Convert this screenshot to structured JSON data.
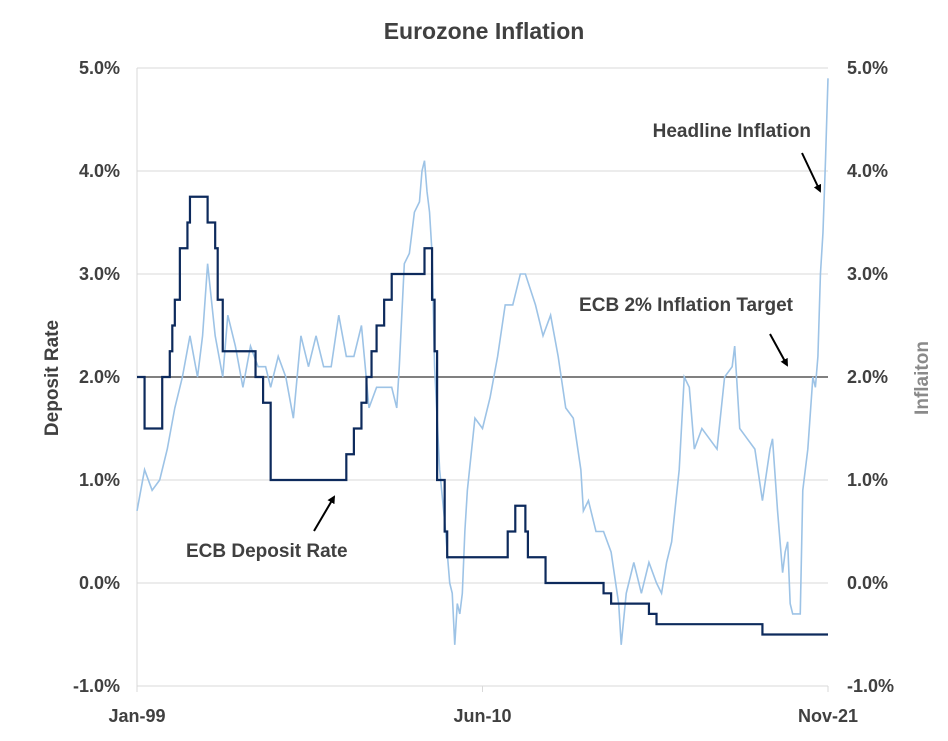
{
  "chart_data": {
    "type": "line",
    "title": "Eurozone Inflation",
    "ylabel": "Deposit  Rate",
    "y2label": "Inflaiton",
    "ylim": [
      -1.0,
      5.0
    ],
    "y2lim": [
      -1.0,
      5.0
    ],
    "yticks": [
      "-1.0%",
      "0.0%",
      "1.0%",
      "2.0%",
      "3.0%",
      "4.0%",
      "5.0%"
    ],
    "y2ticks": [
      "-1.0%",
      "0.0%",
      "1.0%",
      "2.0%",
      "3.0%",
      "4.0%",
      "5.0%"
    ],
    "xticks": [
      "Jan-99",
      "Jun-10",
      "Nov-21"
    ],
    "xrange": [
      "Jan-99",
      "Nov-21"
    ],
    "grid": "horizontal",
    "colors": {
      "deposit": "#0d2a5c",
      "inflation": "#9dc3e6",
      "target": "#000000"
    },
    "annotations": {
      "headline": "Headline Inflation",
      "target": "ECB 2% Inflation Target",
      "deposit": "ECB Deposit Rate"
    },
    "series": [
      {
        "name": "ECB Deposit Rate",
        "axis": "left",
        "points": [
          [
            "1999-01",
            2.0
          ],
          [
            "1999-04",
            1.5
          ],
          [
            "1999-11",
            2.0
          ],
          [
            "2000-02",
            2.25
          ],
          [
            "2000-03",
            2.5
          ],
          [
            "2000-04",
            2.75
          ],
          [
            "2000-06",
            3.25
          ],
          [
            "2000-09",
            3.5
          ],
          [
            "2000-10",
            3.75
          ],
          [
            "2001-05",
            3.5
          ],
          [
            "2001-08",
            3.25
          ],
          [
            "2001-09",
            2.75
          ],
          [
            "2001-11",
            2.25
          ],
          [
            "2002-12",
            2.0
          ],
          [
            "2003-03",
            1.75
          ],
          [
            "2003-06",
            1.0
          ],
          [
            "2005-12",
            1.25
          ],
          [
            "2006-03",
            1.5
          ],
          [
            "2006-06",
            1.75
          ],
          [
            "2006-08",
            2.0
          ],
          [
            "2006-10",
            2.25
          ],
          [
            "2006-12",
            2.5
          ],
          [
            "2007-03",
            2.75
          ],
          [
            "2007-06",
            3.0
          ],
          [
            "2008-07",
            3.25
          ],
          [
            "2008-10",
            2.75
          ],
          [
            "2008-11",
            2.25
          ],
          [
            "2008-12",
            1.0
          ],
          [
            "2009-01",
            1.0
          ],
          [
            "2009-03",
            0.5
          ],
          [
            "2009-04",
            0.25
          ],
          [
            "2011-04",
            0.5
          ],
          [
            "2011-07",
            0.75
          ],
          [
            "2011-11",
            0.5
          ],
          [
            "2011-12",
            0.25
          ],
          [
            "2012-07",
            0.0
          ],
          [
            "2014-06",
            -0.1
          ],
          [
            "2014-09",
            -0.2
          ],
          [
            "2015-12",
            -0.3
          ],
          [
            "2016-03",
            -0.4
          ],
          [
            "2019-09",
            -0.5
          ],
          [
            "2021-11",
            -0.5
          ]
        ]
      },
      {
        "name": "Headline Inflation",
        "axis": "right",
        "points": [
          [
            "1999-01",
            0.7
          ],
          [
            "1999-04",
            1.1
          ],
          [
            "1999-07",
            0.9
          ],
          [
            "1999-10",
            1.0
          ],
          [
            "2000-01",
            1.3
          ],
          [
            "2000-04",
            1.7
          ],
          [
            "2000-07",
            2.0
          ],
          [
            "2000-10",
            2.4
          ],
          [
            "2001-01",
            2.0
          ],
          [
            "2001-03",
            2.4
          ],
          [
            "2001-05",
            3.1
          ],
          [
            "2001-08",
            2.4
          ],
          [
            "2001-11",
            2.0
          ],
          [
            "2002-01",
            2.6
          ],
          [
            "2002-04",
            2.3
          ],
          [
            "2002-07",
            1.9
          ],
          [
            "2002-10",
            2.3
          ],
          [
            "2003-01",
            2.1
          ],
          [
            "2003-04",
            2.1
          ],
          [
            "2003-06",
            1.9
          ],
          [
            "2003-09",
            2.2
          ],
          [
            "2003-12",
            2.0
          ],
          [
            "2004-03",
            1.6
          ],
          [
            "2004-06",
            2.4
          ],
          [
            "2004-09",
            2.1
          ],
          [
            "2004-12",
            2.4
          ],
          [
            "2005-03",
            2.1
          ],
          [
            "2005-06",
            2.1
          ],
          [
            "2005-09",
            2.6
          ],
          [
            "2005-12",
            2.2
          ],
          [
            "2006-03",
            2.2
          ],
          [
            "2006-06",
            2.5
          ],
          [
            "2006-09",
            1.7
          ],
          [
            "2006-12",
            1.9
          ],
          [
            "2007-03",
            1.9
          ],
          [
            "2007-06",
            1.9
          ],
          [
            "2007-08",
            1.7
          ],
          [
            "2007-09",
            2.1
          ],
          [
            "2007-10",
            2.6
          ],
          [
            "2007-11",
            3.1
          ],
          [
            "2008-01",
            3.2
          ],
          [
            "2008-03",
            3.6
          ],
          [
            "2008-05",
            3.7
          ],
          [
            "2008-06",
            4.0
          ],
          [
            "2008-07",
            4.1
          ],
          [
            "2008-08",
            3.8
          ],
          [
            "2008-09",
            3.6
          ],
          [
            "2008-10",
            3.2
          ],
          [
            "2008-11",
            2.1
          ],
          [
            "2008-12",
            1.6
          ],
          [
            "2009-01",
            1.1
          ],
          [
            "2009-03",
            0.6
          ],
          [
            "2009-05",
            0.0
          ],
          [
            "2009-06",
            -0.1
          ],
          [
            "2009-07",
            -0.6
          ],
          [
            "2009-08",
            -0.2
          ],
          [
            "2009-09",
            -0.3
          ],
          [
            "2009-10",
            -0.1
          ],
          [
            "2009-11",
            0.5
          ],
          [
            "2009-12",
            0.9
          ],
          [
            "2010-03",
            1.6
          ],
          [
            "2010-06",
            1.5
          ],
          [
            "2010-09",
            1.8
          ],
          [
            "2010-12",
            2.2
          ],
          [
            "2011-03",
            2.7
          ],
          [
            "2011-06",
            2.7
          ],
          [
            "2011-09",
            3.0
          ],
          [
            "2011-11",
            3.0
          ],
          [
            "2012-03",
            2.7
          ],
          [
            "2012-06",
            2.4
          ],
          [
            "2012-09",
            2.6
          ],
          [
            "2012-12",
            2.2
          ],
          [
            "2013-03",
            1.7
          ],
          [
            "2013-06",
            1.6
          ],
          [
            "2013-09",
            1.1
          ],
          [
            "2013-10",
            0.7
          ],
          [
            "2013-12",
            0.8
          ],
          [
            "2014-03",
            0.5
          ],
          [
            "2014-06",
            0.5
          ],
          [
            "2014-09",
            0.3
          ],
          [
            "2014-12",
            -0.2
          ],
          [
            "2015-01",
            -0.6
          ],
          [
            "2015-03",
            -0.1
          ],
          [
            "2015-06",
            0.2
          ],
          [
            "2015-09",
            -0.1
          ],
          [
            "2015-12",
            0.2
          ],
          [
            "2016-03",
            0.0
          ],
          [
            "2016-05",
            -0.1
          ],
          [
            "2016-07",
            0.2
          ],
          [
            "2016-09",
            0.4
          ],
          [
            "2016-12",
            1.1
          ],
          [
            "2017-02",
            2.0
          ],
          [
            "2017-04",
            1.9
          ],
          [
            "2017-06",
            1.3
          ],
          [
            "2017-09",
            1.5
          ],
          [
            "2017-12",
            1.4
          ],
          [
            "2018-03",
            1.3
          ],
          [
            "2018-06",
            2.0
          ],
          [
            "2018-09",
            2.1
          ],
          [
            "2018-10",
            2.3
          ],
          [
            "2018-12",
            1.5
          ],
          [
            "2019-03",
            1.4
          ],
          [
            "2019-06",
            1.3
          ],
          [
            "2019-09",
            0.8
          ],
          [
            "2019-12",
            1.3
          ],
          [
            "2020-01",
            1.4
          ],
          [
            "2020-03",
            0.7
          ],
          [
            "2020-05",
            0.1
          ],
          [
            "2020-06",
            0.3
          ],
          [
            "2020-07",
            0.4
          ],
          [
            "2020-08",
            -0.2
          ],
          [
            "2020-09",
            -0.3
          ],
          [
            "2020-12",
            -0.3
          ],
          [
            "2021-01",
            0.9
          ],
          [
            "2021-03",
            1.3
          ],
          [
            "2021-05",
            2.0
          ],
          [
            "2021-06",
            1.9
          ],
          [
            "2021-07",
            2.2
          ],
          [
            "2021-08",
            3.0
          ],
          [
            "2021-09",
            3.4
          ],
          [
            "2021-10",
            4.1
          ],
          [
            "2021-11",
            4.9
          ]
        ]
      }
    ]
  }
}
